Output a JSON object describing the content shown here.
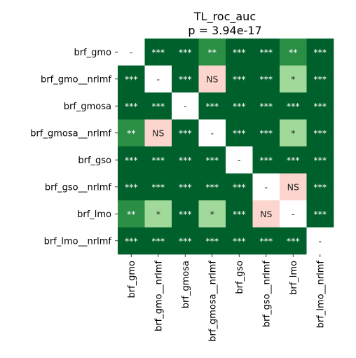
{
  "chart_data": {
    "type": "heatmap",
    "title": "TL_roc_auc",
    "subtitle": "p = 3.94e-17",
    "xlabel": "",
    "ylabel": "",
    "row_labels": [
      "brf_gmo",
      "brf_gmo__nrlmf",
      "brf_gmosa",
      "brf_gmosa__nrlmf",
      "brf_gso",
      "brf_gso__nrlmf",
      "brf_lmo",
      "brf_lmo__nrlmf"
    ],
    "col_labels": [
      "brf_gmo",
      "brf_gmo__nrlmf",
      "brf_gmosa",
      "brf_gmosa__nrlmf",
      "brf_gso",
      "brf_gso__nrlmf",
      "brf_lmo",
      "brf_lmo__nrlmf"
    ],
    "cells": [
      [
        "-",
        "***",
        "***",
        "**",
        "***",
        "***",
        "**",
        "***"
      ],
      [
        "***",
        "-",
        "***",
        "NS",
        "***",
        "***",
        "*",
        "***"
      ],
      [
        "***",
        "***",
        "-",
        "***",
        "***",
        "***",
        "***",
        "***"
      ],
      [
        "**",
        "NS",
        "***",
        "-",
        "***",
        "***",
        "*",
        "***"
      ],
      [
        "***",
        "***",
        "***",
        "***",
        "-",
        "***",
        "***",
        "***"
      ],
      [
        "***",
        "***",
        "***",
        "***",
        "***",
        "-",
        "NS",
        "***"
      ],
      [
        "**",
        "*",
        "***",
        "*",
        "***",
        "NS",
        "-",
        "***"
      ],
      [
        "***",
        "***",
        "***",
        "***",
        "***",
        "***",
        "***",
        "-"
      ]
    ],
    "colors": {
      "***": "#00602b",
      "**": "#2a8f45",
      "*": "#a1d99b",
      "NS": "#fbd5ce",
      "-": "#ffffff"
    },
    "text_colors": {
      "***": "#ffffff",
      "**": "#ffffff",
      "*": "#262626",
      "NS": "#262626",
      "-": "#262626"
    },
    "grid": false,
    "legend": "none"
  }
}
